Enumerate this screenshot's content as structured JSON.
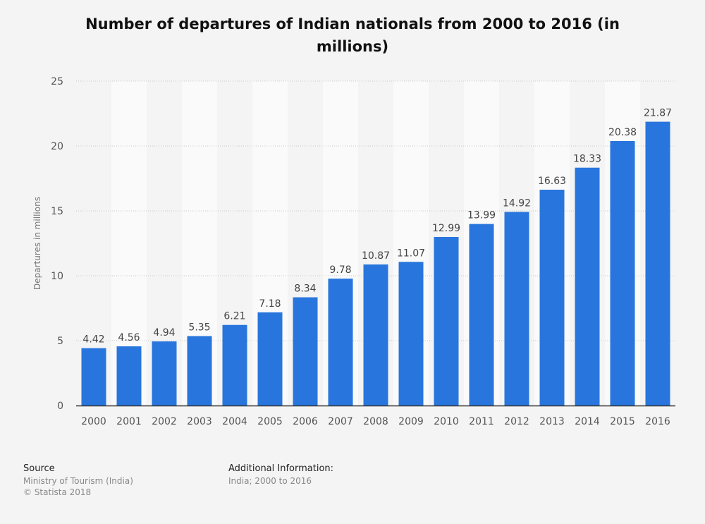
{
  "chart_data": {
    "type": "bar",
    "title": "Number of departures of Indian nationals from 2000 to 2016 (in millions)",
    "xlabel": "",
    "ylabel": "Departures in millions",
    "ylim": [
      0,
      25
    ],
    "yticks": [
      0,
      5,
      10,
      15,
      20,
      25
    ],
    "grid": true,
    "bar_color": "#2876dd",
    "categories": [
      "2000",
      "2001",
      "2002",
      "2003",
      "2004",
      "2005",
      "2006",
      "2007",
      "2008",
      "2009",
      "2010",
      "2011",
      "2012",
      "2013",
      "2014",
      "2015",
      "2016"
    ],
    "values": [
      4.42,
      4.56,
      4.94,
      5.35,
      6.21,
      7.18,
      8.34,
      9.78,
      10.87,
      11.07,
      12.99,
      13.99,
      14.92,
      16.63,
      18.33,
      20.38,
      21.87
    ],
    "value_labels": [
      "4.42",
      "4.56",
      "4.94",
      "5.35",
      "6.21",
      "7.18",
      "8.34",
      "9.78",
      "10.87",
      "11.07",
      "12.99",
      "13.99",
      "14.92",
      "16.63",
      "18.33",
      "20.38",
      "21.87"
    ]
  },
  "footer": {
    "source_heading": "Source",
    "source_line1": "Ministry of Tourism (India)",
    "source_line2": "© Statista 2018",
    "info_heading": "Additional Information:",
    "info_line1": "India; 2000 to 2016"
  }
}
